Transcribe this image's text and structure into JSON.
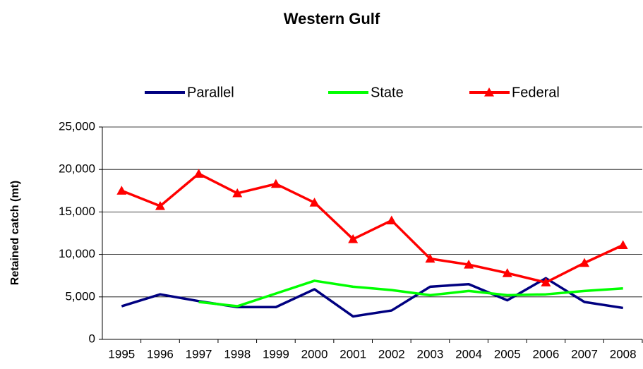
{
  "chart_data": {
    "type": "line",
    "title": "Western Gulf",
    "y_label": "Retained catch (mt)",
    "categories": [
      "1995",
      "1996",
      "1997",
      "1998",
      "1999",
      "2000",
      "2001",
      "2002",
      "2003",
      "2004",
      "2005",
      "2006",
      "2007",
      "2008"
    ],
    "series": [
      {
        "name": "Parallel",
        "color": "#000080",
        "marker": "none",
        "values": [
          3900,
          5300,
          4500,
          3800,
          3800,
          5900,
          2700,
          3400,
          6200,
          6500,
          4600,
          7200,
          4400,
          3700
        ]
      },
      {
        "name": "State",
        "color": "#00ff00",
        "marker": "none",
        "values": [
          null,
          null,
          4400,
          3900,
          5400,
          6900,
          6200,
          5800,
          5200,
          5700,
          5200,
          5300,
          5700,
          6000
        ]
      },
      {
        "name": "Federal",
        "color": "#ff0000",
        "marker": "triangle",
        "values": [
          17500,
          15700,
          19500,
          17200,
          18300,
          16100,
          11800,
          14000,
          9500,
          8800,
          7800,
          6700,
          9000,
          11100
        ]
      }
    ],
    "ylim": [
      0,
      25000
    ],
    "yticks": [
      0,
      {
        "value": 5000,
        "label": "5,000"
      },
      {
        "value": 10000,
        "label": "10,000"
      },
      {
        "value": 15000,
        "label": "15,000"
      },
      {
        "value": 20000,
        "label": "20,000"
      },
      {
        "value": 25000,
        "label": "25,000"
      }
    ],
    "grid": true,
    "legend": "top"
  }
}
